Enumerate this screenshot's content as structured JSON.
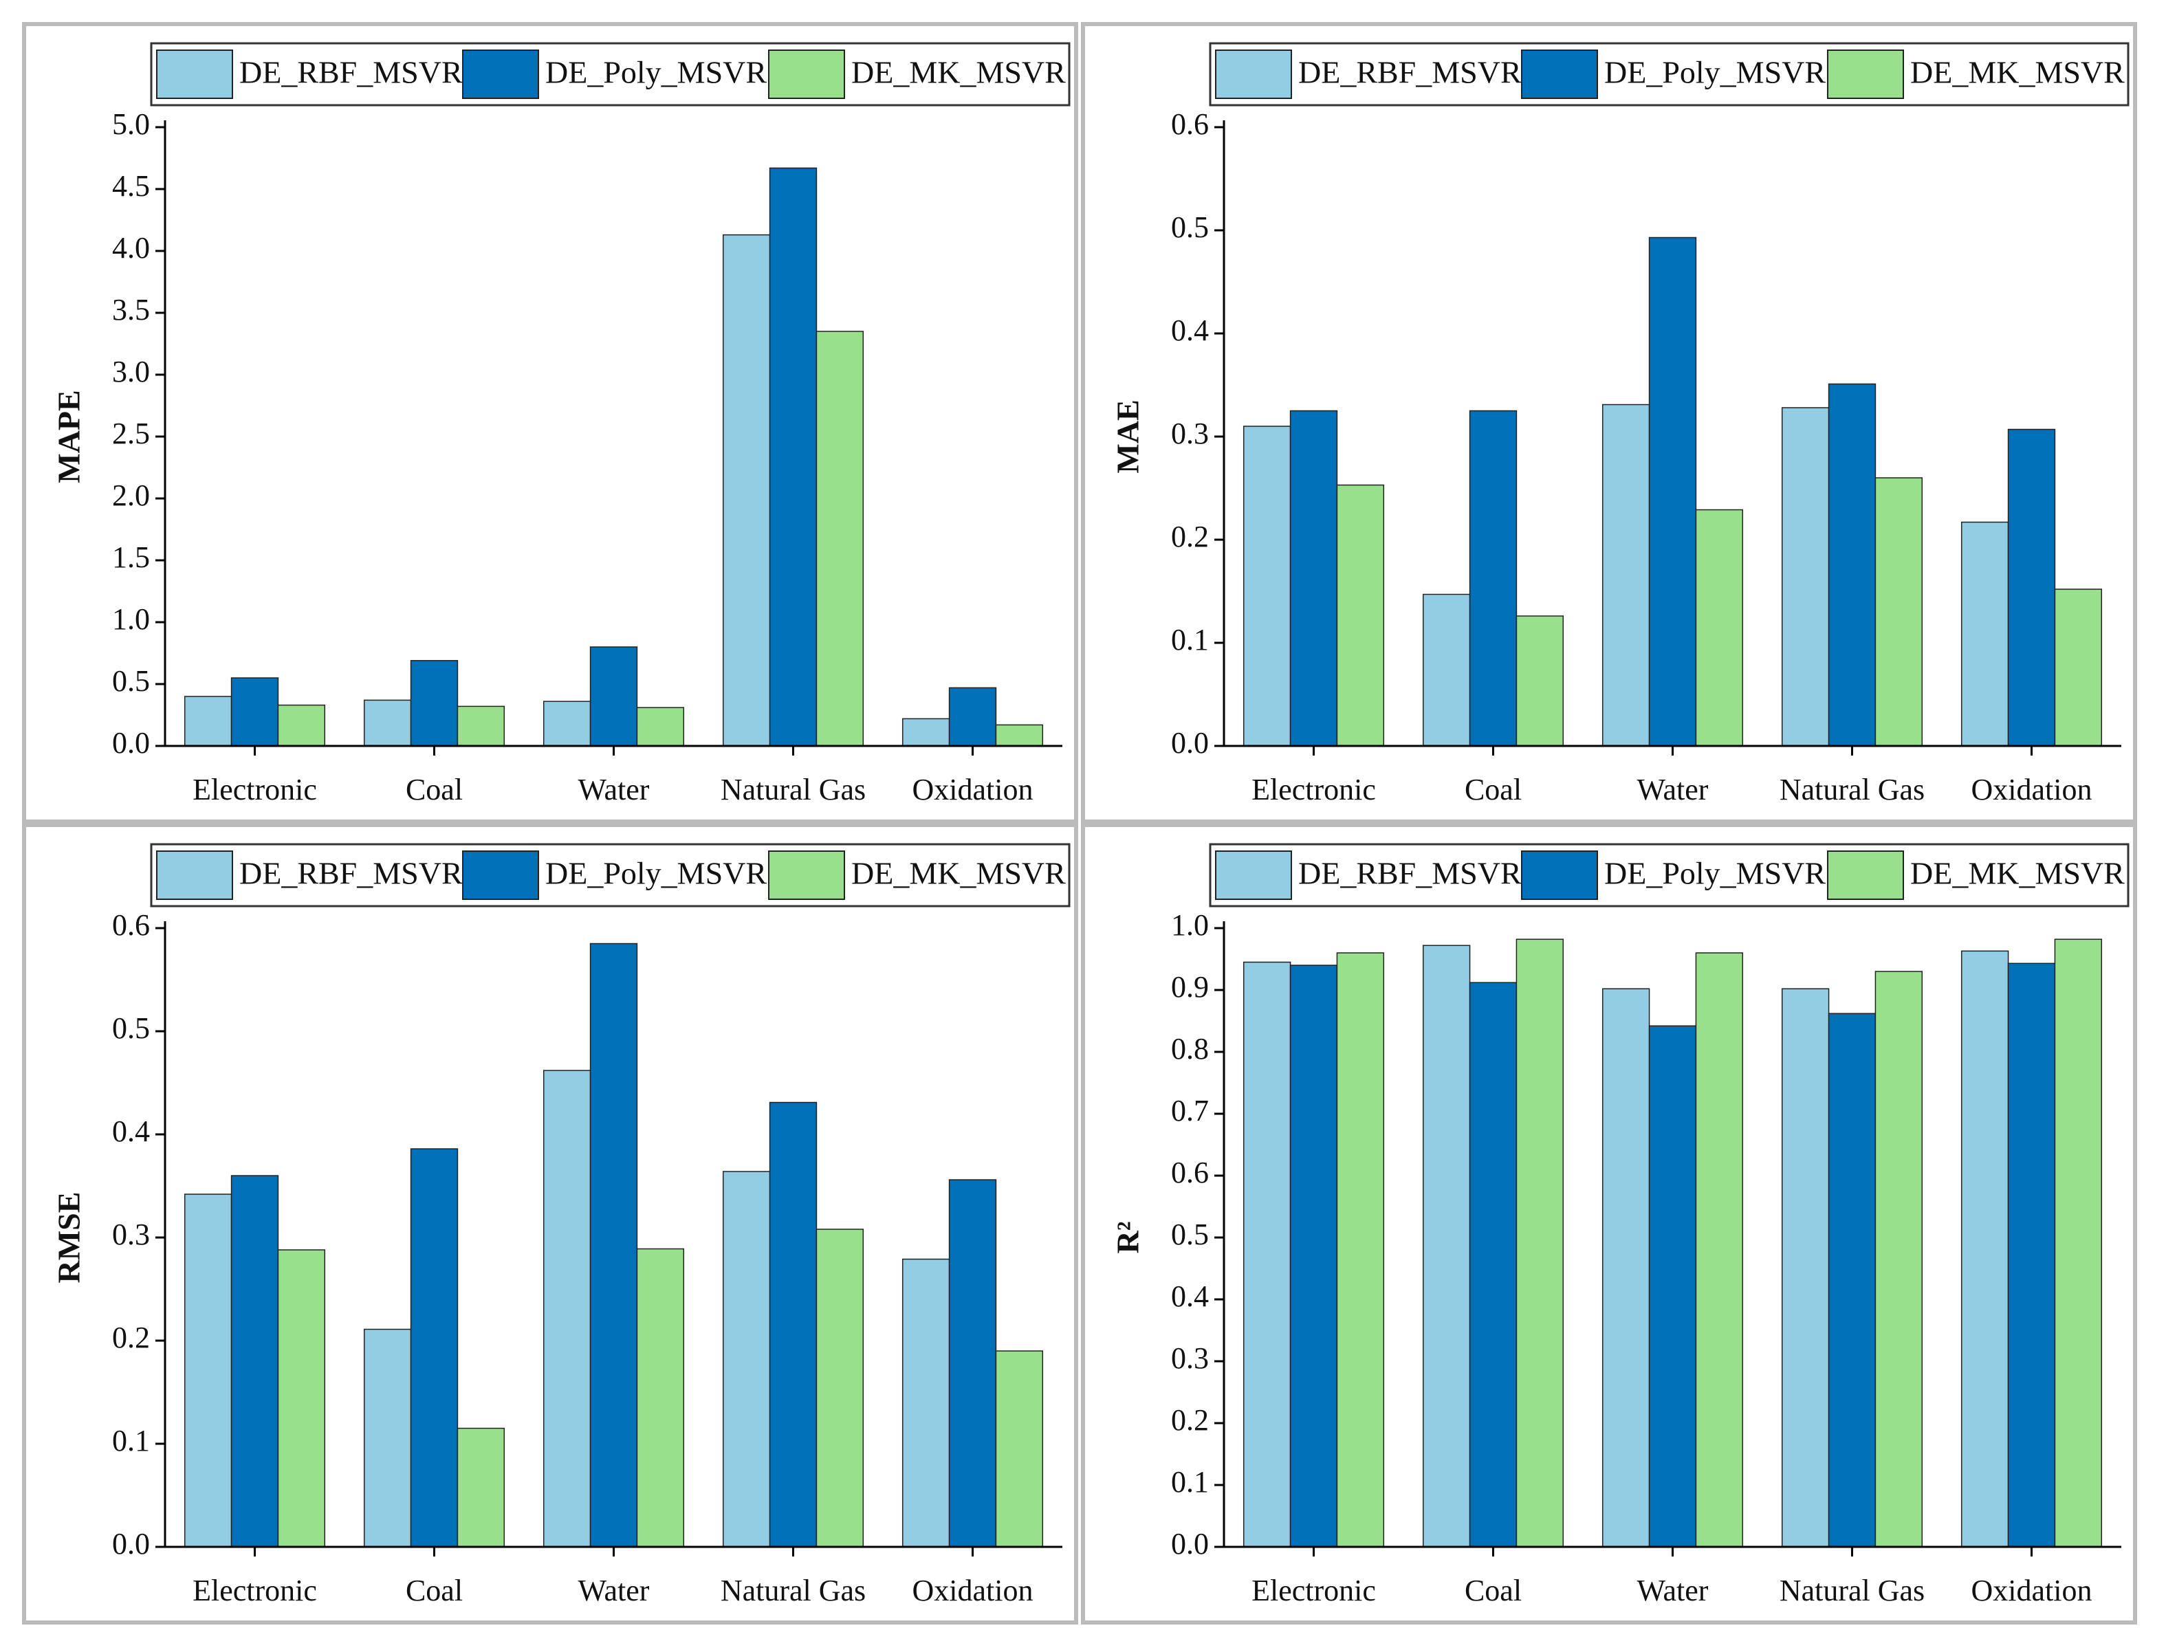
{
  "chart_data": [
    {
      "type": "bar",
      "ylabel": "MAPE",
      "categories": [
        "Electronic",
        "Coal",
        "Water",
        "Natural Gas",
        "Oxidation"
      ],
      "series": [
        {
          "name": "DE_RBF_MSVR",
          "color": "#92cde4",
          "values": [
            0.4,
            0.37,
            0.36,
            4.13,
            0.22
          ]
        },
        {
          "name": "DE_Poly_MSVR",
          "color": "#0070b8",
          "values": [
            0.55,
            0.69,
            0.8,
            4.67,
            0.47
          ]
        },
        {
          "name": "DE_MK_MSVR",
          "color": "#99e08c",
          "values": [
            0.33,
            0.32,
            0.31,
            3.35,
            0.17
          ]
        }
      ],
      "ylim": [
        0,
        5
      ],
      "yticks": [
        {
          "value": 0,
          "label": "0.0"
        },
        0.5,
        {
          "value": 1,
          "label": "1.0"
        },
        1.5,
        {
          "value": 2,
          "label": "2.0"
        },
        2.5,
        {
          "value": 3,
          "label": "3.0"
        },
        3.5,
        {
          "value": 4,
          "label": "4.0"
        },
        4.5,
        {
          "value": 5,
          "label": "5.0"
        }
      ]
    },
    {
      "type": "bar",
      "ylabel": "MAE",
      "categories": [
        "Electronic",
        "Coal",
        "Water",
        "Natural Gas",
        "Oxidation"
      ],
      "series": [
        {
          "name": "DE_RBF_MSVR",
          "color": "#92cde4",
          "values": [
            0.31,
            0.147,
            0.331,
            0.328,
            0.217
          ]
        },
        {
          "name": "DE_Poly_MSVR",
          "color": "#0070b8",
          "values": [
            0.325,
            0.325,
            0.493,
            0.351,
            0.307
          ]
        },
        {
          "name": "DE_MK_MSVR",
          "color": "#99e08c",
          "values": [
            0.253,
            0.126,
            0.229,
            0.26,
            0.152
          ]
        }
      ],
      "ylim": [
        0,
        0.6
      ],
      "yticks": [
        {
          "value": 0,
          "label": "0.0"
        },
        0.1,
        0.2,
        0.3,
        0.4,
        0.5,
        0.6
      ]
    },
    {
      "type": "bar",
      "ylabel": "RMSE",
      "categories": [
        "Electronic",
        "Coal",
        "Water",
        "Natural Gas",
        "Oxidation"
      ],
      "series": [
        {
          "name": "DE_RBF_MSVR",
          "color": "#92cde4",
          "values": [
            0.342,
            0.211,
            0.462,
            0.364,
            0.279
          ]
        },
        {
          "name": "DE_Poly_MSVR",
          "color": "#0070b8",
          "values": [
            0.36,
            0.386,
            0.585,
            0.431,
            0.356
          ]
        },
        {
          "name": "DE_MK_MSVR",
          "color": "#99e08c",
          "values": [
            0.288,
            0.115,
            0.289,
            0.308,
            0.19
          ]
        }
      ],
      "ylim": [
        0,
        0.6
      ],
      "yticks": [
        {
          "value": 0,
          "label": "0.0"
        },
        0.1,
        0.2,
        0.3,
        0.4,
        0.5,
        0.6
      ]
    },
    {
      "type": "bar",
      "ylabel": "R²",
      "categories": [
        "Electronic",
        "Coal",
        "Water",
        "Natural Gas",
        "Oxidation"
      ],
      "series": [
        {
          "name": "DE_RBF_MSVR",
          "color": "#92cde4",
          "values": [
            0.945,
            0.972,
            0.902,
            0.902,
            0.963
          ]
        },
        {
          "name": "DE_Poly_MSVR",
          "color": "#0070b8",
          "values": [
            0.94,
            0.912,
            0.842,
            0.862,
            0.943
          ]
        },
        {
          "name": "DE_MK_MSVR",
          "color": "#99e08c",
          "values": [
            0.96,
            0.982,
            0.96,
            0.93,
            0.982
          ]
        }
      ],
      "ylim": [
        0,
        1
      ],
      "yticks": [
        {
          "value": 0,
          "label": "0.0"
        },
        0.1,
        0.2,
        0.3,
        0.4,
        0.5,
        0.6,
        0.7,
        0.8,
        0.9,
        {
          "value": 1,
          "label": "1.0"
        }
      ]
    }
  ]
}
